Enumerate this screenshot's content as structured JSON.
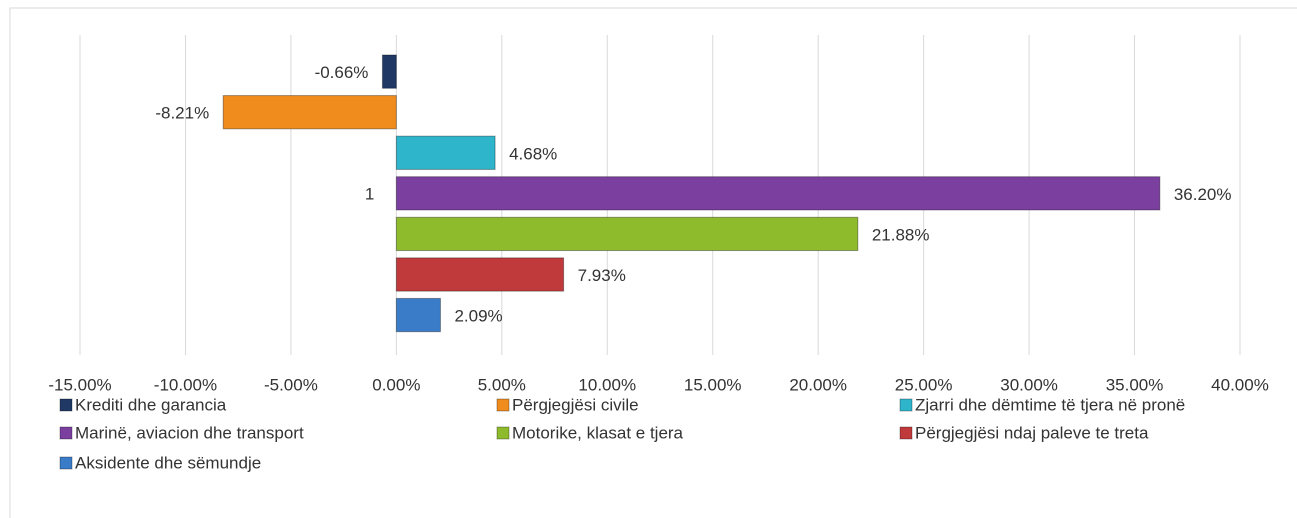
{
  "chart_data": {
    "type": "bar",
    "orientation": "horizontal",
    "categories": [
      "1"
    ],
    "series": [
      {
        "name": "Krediti dhe garancia",
        "color": "#1f3864",
        "values": [
          -0.66
        ],
        "value_labels": [
          "-0.66%"
        ]
      },
      {
        "name": "Përgjegjësi civile",
        "color": "#f08c1e",
        "values": [
          -8.21
        ],
        "value_labels": [
          "-8.21%"
        ]
      },
      {
        "name": "Zjarri dhe dëmtime të tjera në pronë",
        "color": "#2eb5cc",
        "values": [
          4.68
        ],
        "value_labels": [
          "4.68%"
        ]
      },
      {
        "name": "Marinë, aviacion dhe transport",
        "color": "#7b3fa0",
        "values": [
          36.2
        ],
        "value_labels": [
          "36.20%"
        ]
      },
      {
        "name": "Motorike, klasat e tjera",
        "color": "#8dbb2b",
        "values": [
          21.88
        ],
        "value_labels": [
          "21.88%"
        ]
      },
      {
        "name": "Përgjegjësi ndaj paleve te treta",
        "color": "#c0393b",
        "values": [
          7.93
        ],
        "value_labels": [
          "7.93%"
        ]
      },
      {
        "name": "Aksidente dhe sëmundje",
        "color": "#3a7cc8",
        "values": [
          2.09
        ],
        "value_labels": [
          "2.09%"
        ]
      }
    ],
    "xlim": [
      -15,
      40
    ],
    "xticks": [
      {
        "value": -15,
        "label": "-15.00%"
      },
      {
        "value": -10,
        "label": "-10.00%"
      },
      {
        "value": -5,
        "label": "-5.00%"
      },
      {
        "value": 0,
        "label": "0.00%"
      },
      {
        "value": 5,
        "label": "5.00%"
      },
      {
        "value": 10,
        "label": "10.00%"
      },
      {
        "value": 15,
        "label": "15.00%"
      },
      {
        "value": 20,
        "label": "20.00%"
      },
      {
        "value": 25,
        "label": "25.00%"
      },
      {
        "value": 30,
        "label": "30.00%"
      },
      {
        "value": 35,
        "label": "35.00%"
      },
      {
        "value": 40,
        "label": "40.00%"
      }
    ],
    "grid": true,
    "legend": "bottom"
  }
}
